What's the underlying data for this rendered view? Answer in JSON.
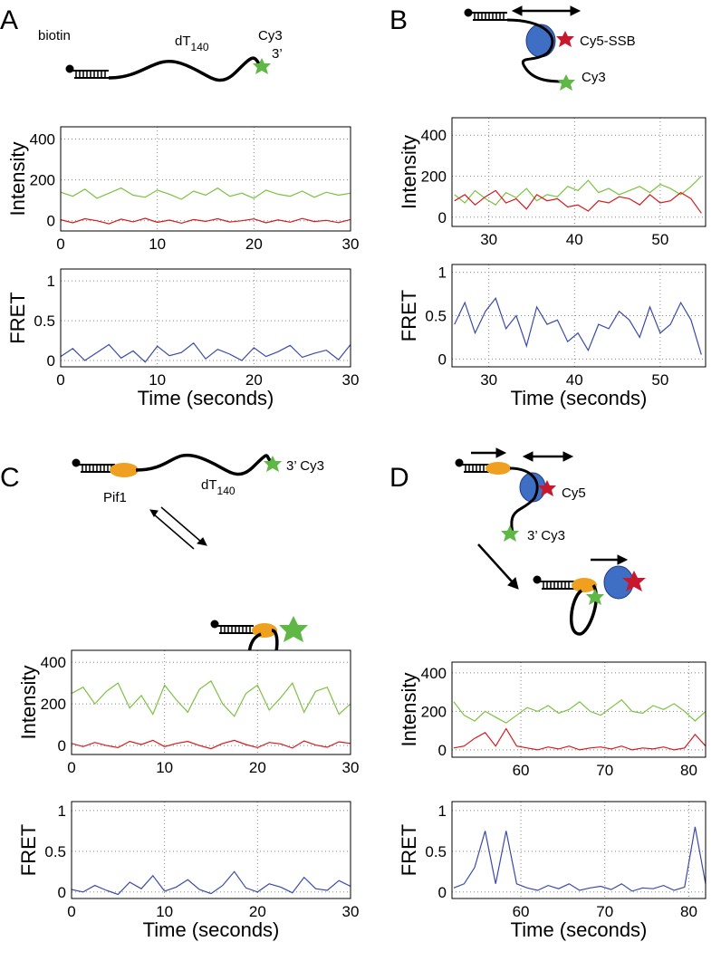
{
  "panels": [
    {
      "letter": "A",
      "labels": [
        {
          "text": "biotin"
        },
        {
          "text": "dT",
          "subscript": "140"
        },
        {
          "text": "Cy3"
        },
        {
          "text": "3’"
        }
      ]
    },
    {
      "letter": "B",
      "labels": [
        {
          "text": "Cy5-SSB"
        },
        {
          "text": "Cy3"
        }
      ]
    },
    {
      "letter": "C",
      "labels": [
        {
          "text": "dT",
          "subscript": "140"
        },
        {
          "text": "3’ Cy3"
        },
        {
          "text": "Pif1"
        }
      ]
    },
    {
      "letter": "D",
      "labels": [
        {
          "text": "Cy5"
        },
        {
          "text": "3’ Cy3"
        }
      ]
    }
  ],
  "chart_data": [
    {
      "type": "line",
      "ylabel": "Intensity",
      "grid": true,
      "x": [
        0,
        1.25,
        2.5,
        3.75,
        5,
        6.25,
        7.5,
        8.75,
        10,
        11.25,
        12.5,
        13.75,
        15,
        16.25,
        17.5,
        18.75,
        20,
        21.25,
        22.5,
        23.75,
        25,
        26.25,
        27.5,
        28.75,
        30
      ],
      "series": [
        {
          "color": "#7dc242",
          "values": [
            140,
            120,
            155,
            110,
            135,
            160,
            125,
            115,
            150,
            130,
            105,
            145,
            125,
            160,
            120,
            135,
            110,
            150,
            130,
            120,
            145,
            115,
            140,
            125,
            135
          ]
        },
        {
          "color": "#d7191c",
          "values": [
            5,
            -10,
            10,
            0,
            -15,
            8,
            -5,
            12,
            -8,
            3,
            -12,
            6,
            -3,
            10,
            -6,
            0,
            9,
            -10,
            4,
            -7,
            11,
            -4,
            2,
            -9,
            6
          ]
        }
      ],
      "xlim": [
        0,
        30
      ],
      "ylim": [
        -50,
        460
      ],
      "xticks": [
        0,
        10,
        20,
        30
      ],
      "yticks": [
        0,
        200,
        400
      ]
    },
    {
      "type": "line",
      "ylabel": "FRET",
      "xlabel": "Time (seconds)",
      "grid": true,
      "x": [
        0,
        1.25,
        2.5,
        3.75,
        5,
        6.25,
        7.5,
        8.75,
        10,
        11.25,
        12.5,
        13.75,
        15,
        16.25,
        17.5,
        18.75,
        20,
        21.25,
        22.5,
        23.75,
        25,
        26.25,
        27.5,
        28.75,
        30
      ],
      "series": [
        {
          "color": "#3a4ba8",
          "values": [
            0.05,
            0.15,
            0,
            0.1,
            0.2,
            0.03,
            0.12,
            -0.02,
            0.18,
            0.06,
            0.1,
            0.22,
            0.02,
            0.14,
            0.08,
            0,
            0.16,
            0.05,
            0.11,
            0.19,
            0.04,
            0.09,
            0.13,
            0.01,
            0.2
          ]
        }
      ],
      "xlim": [
        0,
        30
      ],
      "ylim": [
        -0.08,
        1.15
      ],
      "xticks": [
        0,
        10,
        20,
        30
      ],
      "yticks": [
        0,
        0.5,
        1
      ]
    },
    {
      "type": "line",
      "ylabel": "Intensity",
      "grid": true,
      "x": [
        26,
        27.2,
        28.4,
        29.6,
        30.8,
        32,
        33.2,
        34.4,
        35.6,
        36.8,
        38,
        39.2,
        40.4,
        41.6,
        42.8,
        44,
        45.2,
        46.4,
        47.6,
        48.8,
        50,
        51.2,
        52.4,
        53.6,
        54.8
      ],
      "series": [
        {
          "color": "#7dc242",
          "values": [
            110,
            70,
            130,
            90,
            60,
            120,
            95,
            140,
            80,
            110,
            100,
            150,
            130,
            180,
            120,
            140,
            110,
            130,
            150,
            120,
            160,
            140,
            110,
            150,
            200
          ]
        },
        {
          "color": "#d7191c",
          "values": [
            80,
            110,
            60,
            100,
            130,
            70,
            90,
            40,
            110,
            80,
            90,
            50,
            60,
            30,
            80,
            70,
            100,
            90,
            60,
            110,
            70,
            80,
            120,
            90,
            20
          ]
        }
      ],
      "xlim": [
        25.7,
        55.3
      ],
      "ylim": [
        -45,
        485
      ],
      "xticks": [
        30,
        40,
        50
      ],
      "yticks": [
        0,
        200,
        400
      ]
    },
    {
      "type": "line",
      "ylabel": "FRET",
      "xlabel": "Time (seconds)",
      "grid": true,
      "x": [
        26,
        27.2,
        28.4,
        29.6,
        30.8,
        32,
        33.2,
        34.4,
        35.6,
        36.8,
        38,
        39.2,
        40.4,
        41.6,
        42.8,
        44,
        45.2,
        46.4,
        47.6,
        48.8,
        50,
        51.2,
        52.4,
        53.6,
        54.8
      ],
      "series": [
        {
          "color": "#3a4ba8",
          "values": [
            0.4,
            0.65,
            0.3,
            0.55,
            0.7,
            0.35,
            0.5,
            0.15,
            0.6,
            0.4,
            0.45,
            0.2,
            0.3,
            0.1,
            0.4,
            0.35,
            0.55,
            0.45,
            0.25,
            0.6,
            0.3,
            0.4,
            0.65,
            0.45,
            0.05
          ]
        }
      ],
      "xlim": [
        25.7,
        55.3
      ],
      "ylim": [
        -0.09,
        1.09
      ],
      "xticks": [
        30,
        40,
        50
      ],
      "yticks": [
        0,
        0.5,
        1
      ]
    },
    {
      "type": "line",
      "ylabel": "Intensity",
      "grid": true,
      "x": [
        0,
        1.25,
        2.5,
        3.75,
        5,
        6.25,
        7.5,
        8.75,
        10,
        11.25,
        12.5,
        13.75,
        15,
        16.25,
        17.5,
        18.75,
        20,
        21.25,
        22.5,
        23.75,
        25,
        26.25,
        27.5,
        28.75,
        30
      ],
      "series": [
        {
          "color": "#7dc242",
          "values": [
            250,
            280,
            200,
            260,
            300,
            180,
            240,
            150,
            290,
            220,
            160,
            270,
            310,
            200,
            140,
            250,
            290,
            170,
            230,
            300,
            160,
            260,
            280,
            150,
            200
          ]
        },
        {
          "color": "#d7191c",
          "values": [
            10,
            -5,
            15,
            0,
            -10,
            20,
            5,
            25,
            -5,
            10,
            20,
            0,
            -15,
            10,
            25,
            5,
            -10,
            15,
            8,
            -12,
            22,
            2,
            -8,
            18,
            10
          ]
        }
      ],
      "xlim": [
        0,
        30
      ],
      "ylim": [
        -43,
        457
      ],
      "xticks": [
        0,
        10,
        20,
        30
      ],
      "yticks": [
        0,
        200,
        400
      ]
    },
    {
      "type": "line",
      "ylabel": "FRET",
      "xlabel": "Time (seconds)",
      "grid": true,
      "x": [
        0,
        1.25,
        2.5,
        3.75,
        5,
        6.25,
        7.5,
        8.75,
        10,
        11.25,
        12.5,
        13.75,
        15,
        16.25,
        17.5,
        18.75,
        20,
        21.25,
        22.5,
        23.75,
        25,
        26.25,
        27.5,
        28.75,
        30
      ],
      "series": [
        {
          "color": "#3a4ba8",
          "values": [
            0.03,
            0,
            0.08,
            0.02,
            -0.03,
            0.12,
            0.04,
            0.2,
            0.01,
            0.06,
            0.15,
            0.03,
            -0.02,
            0.08,
            0.25,
            0.05,
            0,
            0.1,
            0.06,
            -0.01,
            0.18,
            0.04,
            0.02,
            0.14,
            0.07
          ]
        }
      ],
      "xlim": [
        0,
        30
      ],
      "ylim": [
        -0.08,
        1.11
      ],
      "xticks": [
        0,
        10,
        20,
        30
      ],
      "yticks": [
        0,
        0.5,
        1
      ]
    },
    {
      "type": "line",
      "ylabel": "Intensity",
      "grid": true,
      "x": [
        52,
        53.25,
        54.5,
        55.75,
        57,
        58.25,
        59.5,
        60.75,
        62,
        63.25,
        64.5,
        65.75,
        67,
        68.25,
        69.5,
        70.75,
        72,
        73.25,
        74.5,
        75.75,
        77,
        78.25,
        79.5,
        80.75,
        82
      ],
      "series": [
        {
          "color": "#7dc242",
          "values": [
            250,
            180,
            150,
            200,
            170,
            140,
            180,
            220,
            200,
            230,
            190,
            210,
            250,
            200,
            180,
            220,
            260,
            200,
            190,
            230,
            210,
            240,
            200,
            150,
            200
          ]
        },
        {
          "color": "#d7191c",
          "values": [
            10,
            20,
            60,
            90,
            20,
            110,
            20,
            10,
            0,
            15,
            5,
            20,
            0,
            10,
            15,
            5,
            20,
            0,
            10,
            5,
            15,
            0,
            10,
            80,
            20
          ]
        }
      ],
      "xlim": [
        51.8,
        82
      ],
      "ylim": [
        -38,
        456
      ],
      "xticks": [
        60,
        70,
        80
      ],
      "yticks": [
        0,
        200,
        400
      ]
    },
    {
      "type": "line",
      "ylabel": "FRET",
      "xlabel": "Time (seconds)",
      "grid": true,
      "x": [
        52,
        53.25,
        54.5,
        55.75,
        57,
        58.25,
        59.5,
        60.75,
        62,
        63.25,
        64.5,
        65.75,
        67,
        68.25,
        69.5,
        70.75,
        72,
        73.25,
        74.5,
        75.75,
        77,
        78.25,
        79.5,
        80.75,
        82
      ],
      "series": [
        {
          "color": "#3a4ba8",
          "values": [
            0.05,
            0.1,
            0.3,
            0.75,
            0.1,
            0.75,
            0.1,
            0.05,
            0.02,
            0.08,
            0.04,
            0.1,
            0.02,
            0.05,
            0.07,
            0.03,
            0.1,
            0.01,
            0.05,
            0.04,
            0.08,
            0.02,
            0.06,
            0.8,
            0.1
          ]
        }
      ],
      "xlim": [
        51.8,
        82
      ],
      "ylim": [
        -0.08,
        1.11
      ],
      "xticks": [
        60,
        70,
        80
      ],
      "yticks": [
        0,
        0.5,
        1
      ]
    }
  ]
}
